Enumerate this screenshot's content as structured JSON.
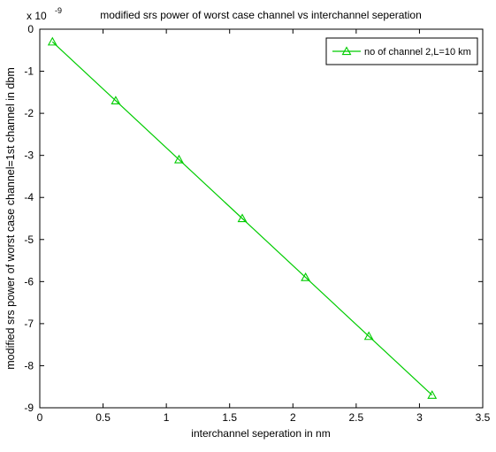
{
  "chart_data": {
    "type": "line",
    "title": "modified srs power of worst case channel vs interchannel seperation",
    "xlabel": "interchannel seperation in nm",
    "ylabel": "modified srs power of worst case channel=1st channel in dbm",
    "y_exponent_label": "x 10",
    "y_exponent_power": "-9",
    "xlim": [
      0,
      3.5
    ],
    "ylim": [
      -9,
      0
    ],
    "x_ticks": [
      "0",
      "0.5",
      "1",
      "1.5",
      "2",
      "2.5",
      "3",
      "3.5"
    ],
    "y_ticks": [
      "0",
      "-1",
      "-2",
      "-3",
      "-4",
      "-5",
      "-6",
      "-7",
      "-8",
      "-9"
    ],
    "grid": false,
    "legend_position": "top-right",
    "series": [
      {
        "name": "no of channel 2,L=10 km",
        "color": "#00cc00",
        "marker": "triangle",
        "x": [
          0.1,
          0.6,
          1.1,
          1.6,
          2.1,
          2.6,
          3.1
        ],
        "y": [
          -0.3,
          -1.7,
          -3.1,
          -4.5,
          -5.9,
          -7.3,
          -8.7
        ]
      }
    ]
  }
}
